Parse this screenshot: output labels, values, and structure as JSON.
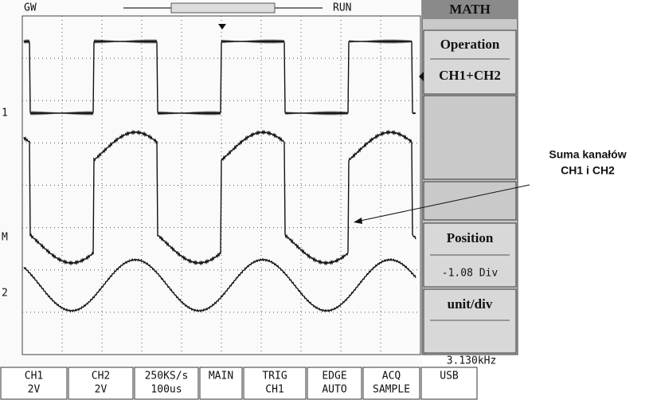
{
  "header": {
    "brand": "GW",
    "status": "RUN"
  },
  "channel_markers": [
    "1",
    "M",
    "2"
  ],
  "menu": {
    "title": "MATH",
    "operation_label": "Operation",
    "operation_value": "CH1+CH2",
    "position_label": "Position",
    "position_value": "-1.08 Div",
    "unit_label": "unit/div"
  },
  "frequency": "3.130kHz",
  "status_bar": [
    [
      "CH1",
      "2V"
    ],
    [
      "CH2",
      "2V"
    ],
    [
      "250KS/s",
      "100us"
    ],
    [
      "MAIN"
    ],
    [
      "TRIG",
      "CH1"
    ],
    [
      "EDGE",
      "AUTO"
    ],
    [
      "ACQ",
      "SAMPLE"
    ],
    [
      "USB"
    ]
  ],
  "annotation": [
    "Suma kanałów",
    "CH1 i CH2"
  ]
}
